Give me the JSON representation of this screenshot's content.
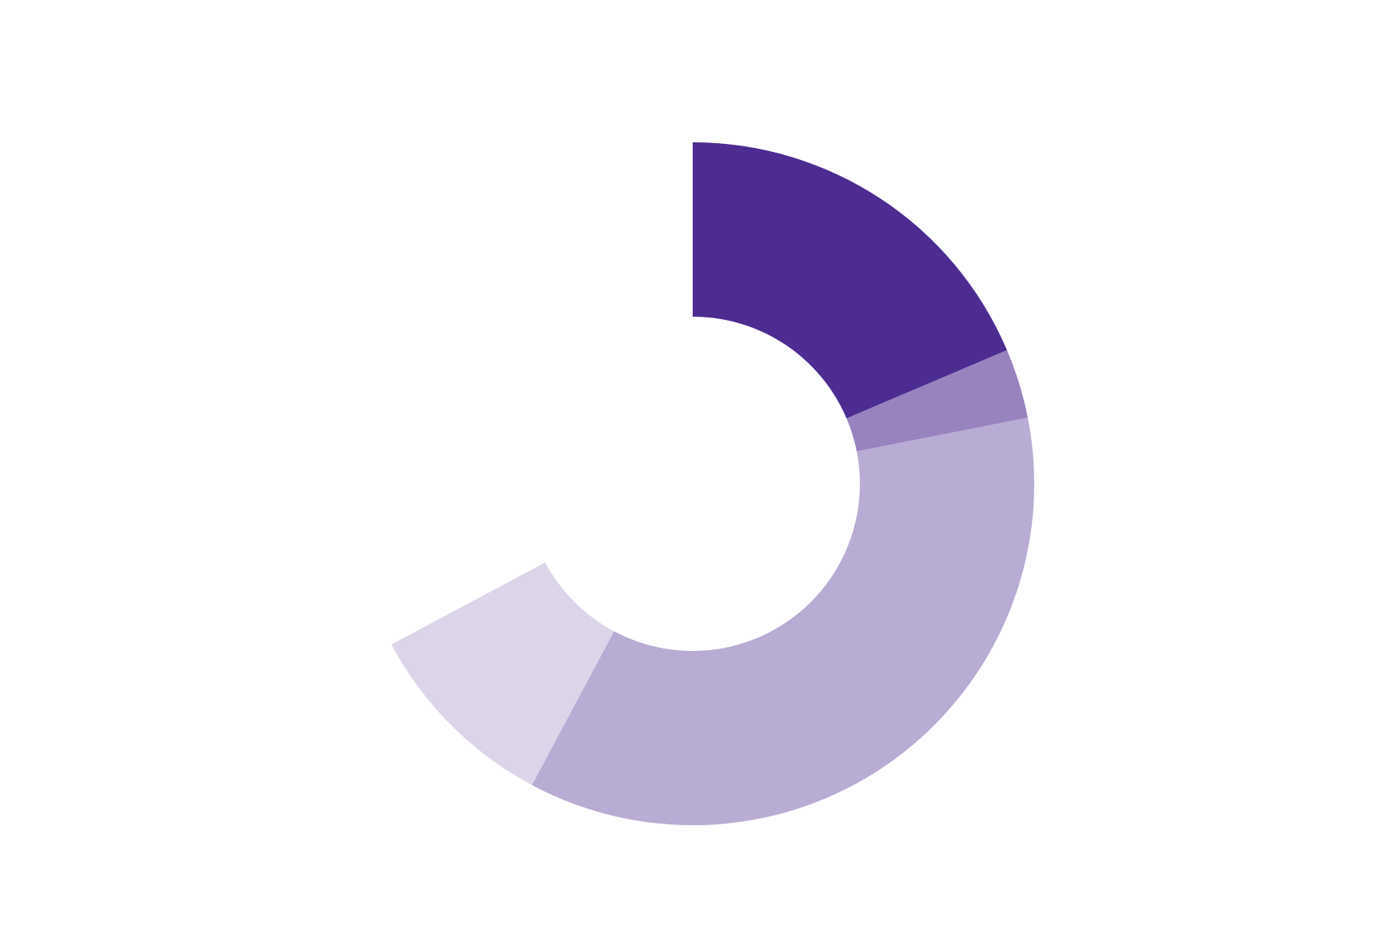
{
  "chart_data": {
    "type": "donut",
    "total": 100,
    "values": [
      18.6,
      3.3,
      35.9,
      9.4
    ],
    "colors": [
      "#4d2c91",
      "#9883bf",
      "#b8acd4",
      "#dcd5e9"
    ]
  }
}
